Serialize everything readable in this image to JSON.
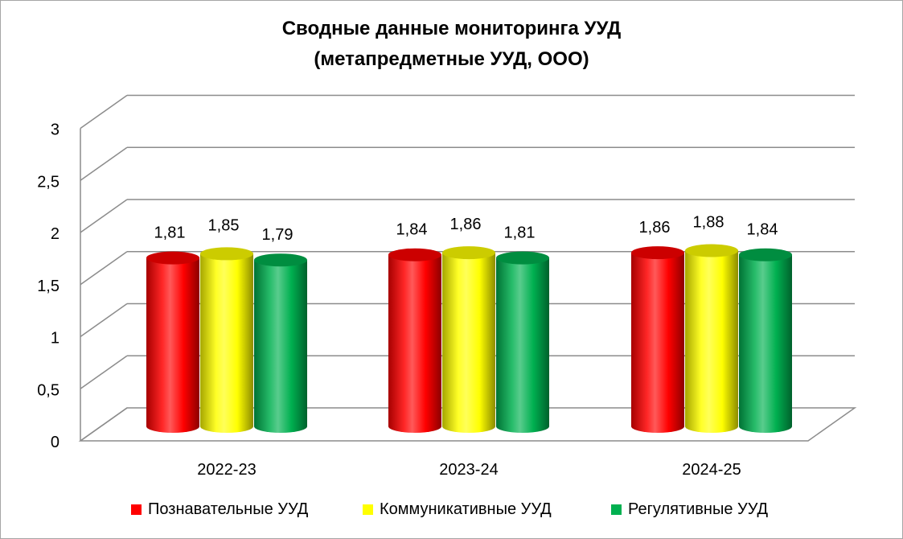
{
  "chart_data": {
    "type": "bar",
    "title": "Сводные данные мониторинга УУД",
    "subtitle": "(метапредметные УУД, ООО)",
    "categories": [
      "2022-23",
      "2023-24",
      "2024-25"
    ],
    "series": [
      {
        "name": "Познавательные УУД",
        "values": [
          1.81,
          1.84,
          1.86
        ],
        "color": "#ff0000",
        "labels": [
          "1,81",
          "1,84",
          "1,86"
        ]
      },
      {
        "name": "Коммуникативные УУД",
        "values": [
          1.85,
          1.86,
          1.88
        ],
        "color": "#ffff00",
        "labels": [
          "1,85",
          "1,86",
          "1,88"
        ]
      },
      {
        "name": "Регулятивные УУД",
        "values": [
          1.79,
          1.81,
          1.84
        ],
        "color": "#00b050",
        "labels": [
          "1,79",
          "1,81",
          "1,84"
        ]
      }
    ],
    "ylim": [
      0,
      3
    ],
    "yticks": [
      "0",
      "0,5",
      "1",
      "1,5",
      "2",
      "2,5",
      "3"
    ],
    "grid": true,
    "legend": "bottom",
    "style": "3d-cylinder"
  }
}
